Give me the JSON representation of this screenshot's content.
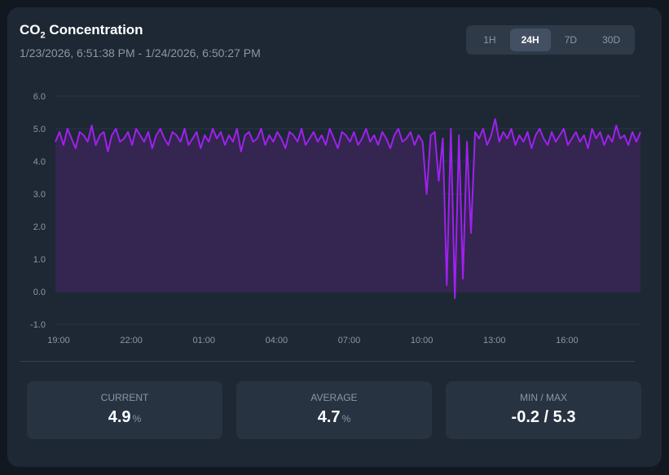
{
  "header": {
    "title_prefix": "CO",
    "title_sub": "2",
    "title_suffix": " Concentration",
    "range": "1/23/2026, 6:51:38 PM - 1/24/2026, 6:50:27 PM"
  },
  "ranges": [
    {
      "label": "1H",
      "active": false
    },
    {
      "label": "24H",
      "active": true
    },
    {
      "label": "7D",
      "active": false
    },
    {
      "label": "30D",
      "active": false
    }
  ],
  "stats": [
    {
      "label": "CURRENT",
      "value": "4.9",
      "unit": "%"
    },
    {
      "label": "AVERAGE",
      "value": "4.7",
      "unit": "%"
    },
    {
      "label": "MIN / MAX",
      "value": "-0.2 / 5.3",
      "unit": ""
    }
  ],
  "chart_data": {
    "type": "area",
    "line_color": "#a020f0",
    "fill_color": "#3a2556",
    "ylim": [
      -1,
      6
    ],
    "yticks": [
      6,
      5,
      4,
      3,
      2,
      1,
      0,
      -1
    ],
    "ytick_labels": [
      "6.0",
      "5.0",
      "4.0",
      "3.0",
      "2.0",
      "1.0",
      "0.0",
      "-1.0"
    ],
    "xtick_labels": [
      "19:00",
      "22:00",
      "01:00",
      "04:00",
      "07:00",
      "10:00",
      "13:00",
      "16:00"
    ],
    "x_start": "19:00",
    "interval_minutes": 10,
    "values": [
      4.6,
      4.9,
      4.5,
      5.0,
      4.7,
      4.4,
      4.9,
      4.8,
      4.6,
      5.1,
      4.5,
      4.8,
      4.9,
      4.3,
      4.8,
      5.0,
      4.6,
      4.7,
      4.9,
      4.5,
      5.0,
      4.8,
      4.6,
      4.9,
      4.4,
      4.8,
      5.0,
      4.7,
      4.5,
      4.9,
      4.8,
      4.6,
      5.0,
      4.5,
      4.7,
      4.9,
      4.4,
      4.8,
      4.6,
      5.0,
      4.7,
      4.9,
      4.5,
      4.8,
      4.6,
      5.0,
      4.3,
      4.8,
      4.9,
      4.6,
      4.7,
      5.0,
      4.5,
      4.8,
      4.6,
      4.9,
      4.7,
      4.4,
      4.9,
      4.8,
      4.6,
      5.0,
      4.5,
      4.7,
      4.9,
      4.6,
      4.8,
      4.5,
      5.0,
      4.7,
      4.4,
      4.9,
      4.8,
      4.6,
      4.9,
      4.5,
      4.7,
      5.0,
      4.6,
      4.8,
      4.5,
      4.9,
      4.7,
      4.4,
      4.8,
      5.0,
      4.6,
      4.7,
      4.9,
      4.5,
      4.8,
      4.6,
      3.0,
      4.8,
      4.9,
      3.4,
      4.7,
      0.2,
      5.0,
      -0.2,
      4.8,
      0.4,
      4.6,
      1.8,
      4.9,
      4.7,
      5.0,
      4.5,
      4.8,
      5.3,
      4.6,
      4.9,
      4.7,
      5.0,
      4.5,
      4.8,
      4.6,
      4.9,
      4.4,
      4.8,
      5.0,
      4.7,
      4.5,
      4.9,
      4.6,
      4.8,
      5.0,
      4.5,
      4.7,
      4.9,
      4.6,
      4.8,
      4.4,
      5.0,
      4.7,
      4.9,
      4.5,
      4.8,
      4.6,
      5.1,
      4.7,
      4.8,
      4.5,
      4.9,
      4.6,
      4.9
    ]
  }
}
